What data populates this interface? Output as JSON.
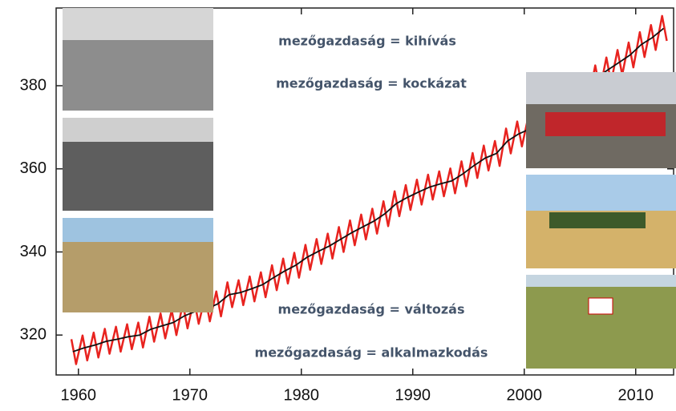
{
  "chart_data": {
    "type": "line",
    "xlim": [
      1958,
      2013.4
    ],
    "ylim": [
      310.4,
      398.7
    ],
    "xticks": [
      1960,
      1970,
      1980,
      1990,
      2000,
      2010
    ],
    "yticks": [
      320,
      340,
      360,
      380
    ],
    "annotations": [
      "mezőgazdaság = kihívás",
      "mezőgazdaság = kockázat",
      "mezőgazdaság = változás",
      "mezőgazdaság = alkalmazkodás"
    ],
    "series": [
      {
        "color": "#e8231f",
        "x": [
          1959.37,
          1959.79,
          1960.37,
          1960.79,
          1961.37,
          1961.79,
          1962.37,
          1962.79,
          1963.37,
          1963.79,
          1964.37,
          1964.79,
          1965.37,
          1965.79,
          1966.37,
          1966.79,
          1967.37,
          1967.79,
          1968.37,
          1968.79,
          1969.37,
          1969.79,
          1970.37,
          1970.79,
          1971.37,
          1971.79,
          1972.37,
          1972.79,
          1973.37,
          1973.79,
          1974.37,
          1974.79,
          1975.37,
          1975.79,
          1976.37,
          1976.79,
          1977.37,
          1977.79,
          1978.37,
          1978.79,
          1979.37,
          1979.79,
          1980.37,
          1980.79,
          1981.37,
          1981.79,
          1982.37,
          1982.79,
          1983.37,
          1983.79,
          1984.37,
          1984.79,
          1985.37,
          1985.79,
          1986.37,
          1986.79,
          1987.37,
          1987.79,
          1988.37,
          1988.79,
          1989.37,
          1989.79,
          1990.37,
          1990.79,
          1991.37,
          1991.79,
          1992.37,
          1992.79,
          1993.37,
          1993.79,
          1994.37,
          1994.79,
          1995.37,
          1995.79,
          1996.37,
          1996.79,
          1997.37,
          1997.79,
          1998.37,
          1998.79,
          1999.37,
          1999.79,
          2000.37,
          2000.79,
          2001.37,
          2001.79,
          2002.37,
          2002.79,
          2003.37,
          2003.79,
          2004.37,
          2004.79,
          2005.37,
          2005.79,
          2006.37,
          2006.79,
          2007.37,
          2007.79,
          2008.37,
          2008.79,
          2009.37,
          2009.79,
          2010.37,
          2010.79,
          2011.37,
          2011.79,
          2012.37,
          2012.79
        ],
        "values": [
          319.0,
          313.0,
          319.9,
          313.9,
          320.6,
          314.6,
          321.5,
          315.5,
          322.0,
          316.0,
          322.6,
          316.6,
          323.0,
          317.0,
          324.4,
          318.4,
          325.2,
          319.2,
          326.0,
          320.0,
          327.6,
          321.6,
          328.7,
          322.7,
          329.3,
          323.3,
          330.5,
          324.5,
          332.7,
          326.7,
          333.2,
          327.2,
          334.1,
          328.1,
          335.1,
          329.1,
          336.8,
          330.8,
          338.4,
          332.4,
          339.8,
          333.8,
          341.7,
          335.7,
          343.1,
          337.1,
          344.4,
          338.4,
          346.0,
          340.0,
          347.6,
          341.6,
          349.0,
          343.0,
          350.4,
          344.4,
          352.2,
          346.2,
          354.6,
          348.6,
          356.1,
          350.1,
          357.4,
          351.4,
          358.6,
          352.6,
          359.4,
          353.4,
          360.1,
          354.1,
          361.8,
          355.8,
          363.8,
          357.8,
          365.6,
          359.6,
          366.7,
          360.7,
          369.7,
          363.7,
          371.4,
          365.4,
          372.6,
          366.6,
          374.1,
          368.1,
          376.2,
          370.2,
          378.8,
          372.8,
          380.5,
          374.5,
          382.8,
          376.8,
          384.9,
          378.9,
          386.8,
          380.8,
          388.6,
          382.6,
          390.4,
          384.4,
          392.9,
          386.9,
          394.6,
          388.6,
          396.8,
          390.8
        ]
      },
      {
        "color": "#111111",
        "x": [
          1959.5,
          1960.5,
          1961.5,
          1962.5,
          1963.5,
          1964.5,
          1965.5,
          1966.5,
          1967.5,
          1968.5,
          1969.5,
          1970.5,
          1971.5,
          1972.5,
          1973.5,
          1974.5,
          1975.5,
          1976.5,
          1977.5,
          1978.5,
          1979.5,
          1980.5,
          1981.5,
          1982.5,
          1983.5,
          1984.5,
          1985.5,
          1986.5,
          1987.5,
          1988.5,
          1989.5,
          1990.5,
          1991.5,
          1992.5,
          1993.5,
          1994.5,
          1995.5,
          1996.5,
          1997.5,
          1998.5,
          1999.5,
          2000.5,
          2001.5,
          2002.5,
          2003.5,
          2004.5,
          2005.5,
          2006.5,
          2007.5,
          2008.5,
          2009.5,
          2010.5,
          2011.5,
          2012.5
        ],
        "values": [
          316.0,
          316.9,
          317.6,
          318.5,
          319.0,
          319.6,
          320.0,
          321.4,
          322.2,
          323.0,
          324.6,
          325.7,
          326.3,
          327.5,
          329.7,
          330.2,
          331.1,
          332.1,
          333.8,
          335.4,
          336.8,
          338.7,
          340.1,
          341.4,
          343.0,
          344.6,
          346.0,
          347.4,
          349.2,
          351.6,
          353.1,
          354.4,
          355.6,
          356.4,
          357.1,
          358.8,
          360.8,
          362.6,
          363.7,
          366.7,
          368.4,
          369.6,
          371.1,
          373.2,
          375.8,
          377.5,
          379.8,
          381.9,
          383.8,
          385.6,
          387.4,
          389.9,
          391.6,
          393.8
        ]
      }
    ]
  }
}
